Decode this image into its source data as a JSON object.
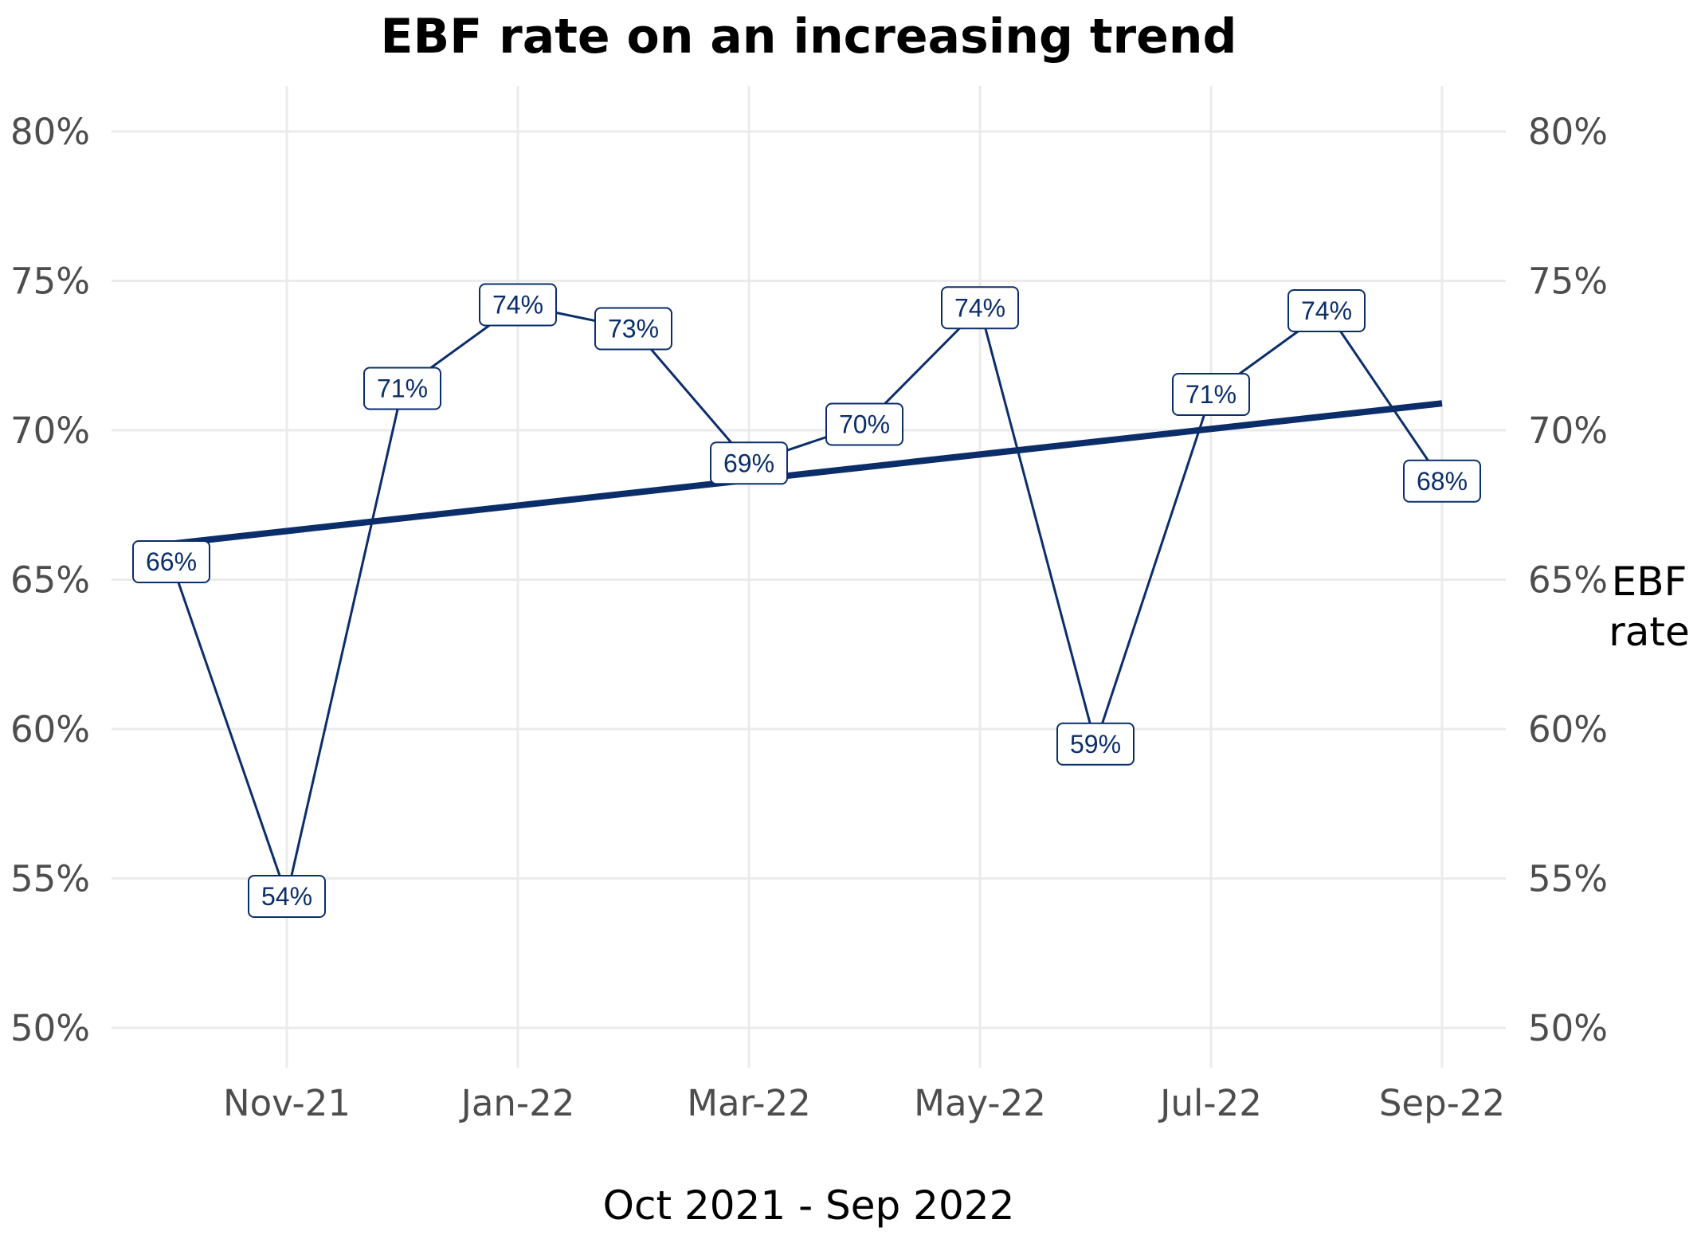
{
  "chart_data": {
    "type": "line",
    "title": "EBF rate on an increasing trend",
    "xlabel": "Oct 2021 - Sep 2022",
    "ylabel": "EBF rate",
    "ylabel_lines": [
      "EBF",
      "rate"
    ],
    "x": [
      "Oct-21",
      "Nov-21",
      "Dec-21",
      "Jan-22",
      "Feb-22",
      "Mar-22",
      "Apr-22",
      "May-22",
      "Jun-22",
      "Jul-22",
      "Aug-22",
      "Sep-22"
    ],
    "x_tick_labels": [
      "Nov-21",
      "Jan-22",
      "Mar-22",
      "May-22",
      "Jul-22",
      "Sep-22"
    ],
    "y_tick_labels": [
      "50%",
      "55%",
      "60%",
      "65%",
      "70%",
      "75%",
      "80%"
    ],
    "y_ticks": [
      50,
      55,
      60,
      65,
      70,
      75,
      80
    ],
    "ylim": [
      50,
      80
    ],
    "series": [
      {
        "values": [
          65.6,
          54.4,
          71.4,
          74.2,
          73.4,
          68.9,
          70.2,
          74.1,
          59.5,
          71.2,
          74.0,
          68.3
        ],
        "data_labels": [
          "66%",
          "54%",
          "71%",
          "74%",
          "73%",
          "69%",
          "70%",
          "74%",
          "59%",
          "71%",
          "74%",
          "68%"
        ],
        "color": "#0b2e6b"
      }
    ],
    "trend": {
      "start": 66.2,
      "end": 70.9,
      "color": "#0b2e6b"
    },
    "grid": true,
    "secondary_y_axis": true
  }
}
